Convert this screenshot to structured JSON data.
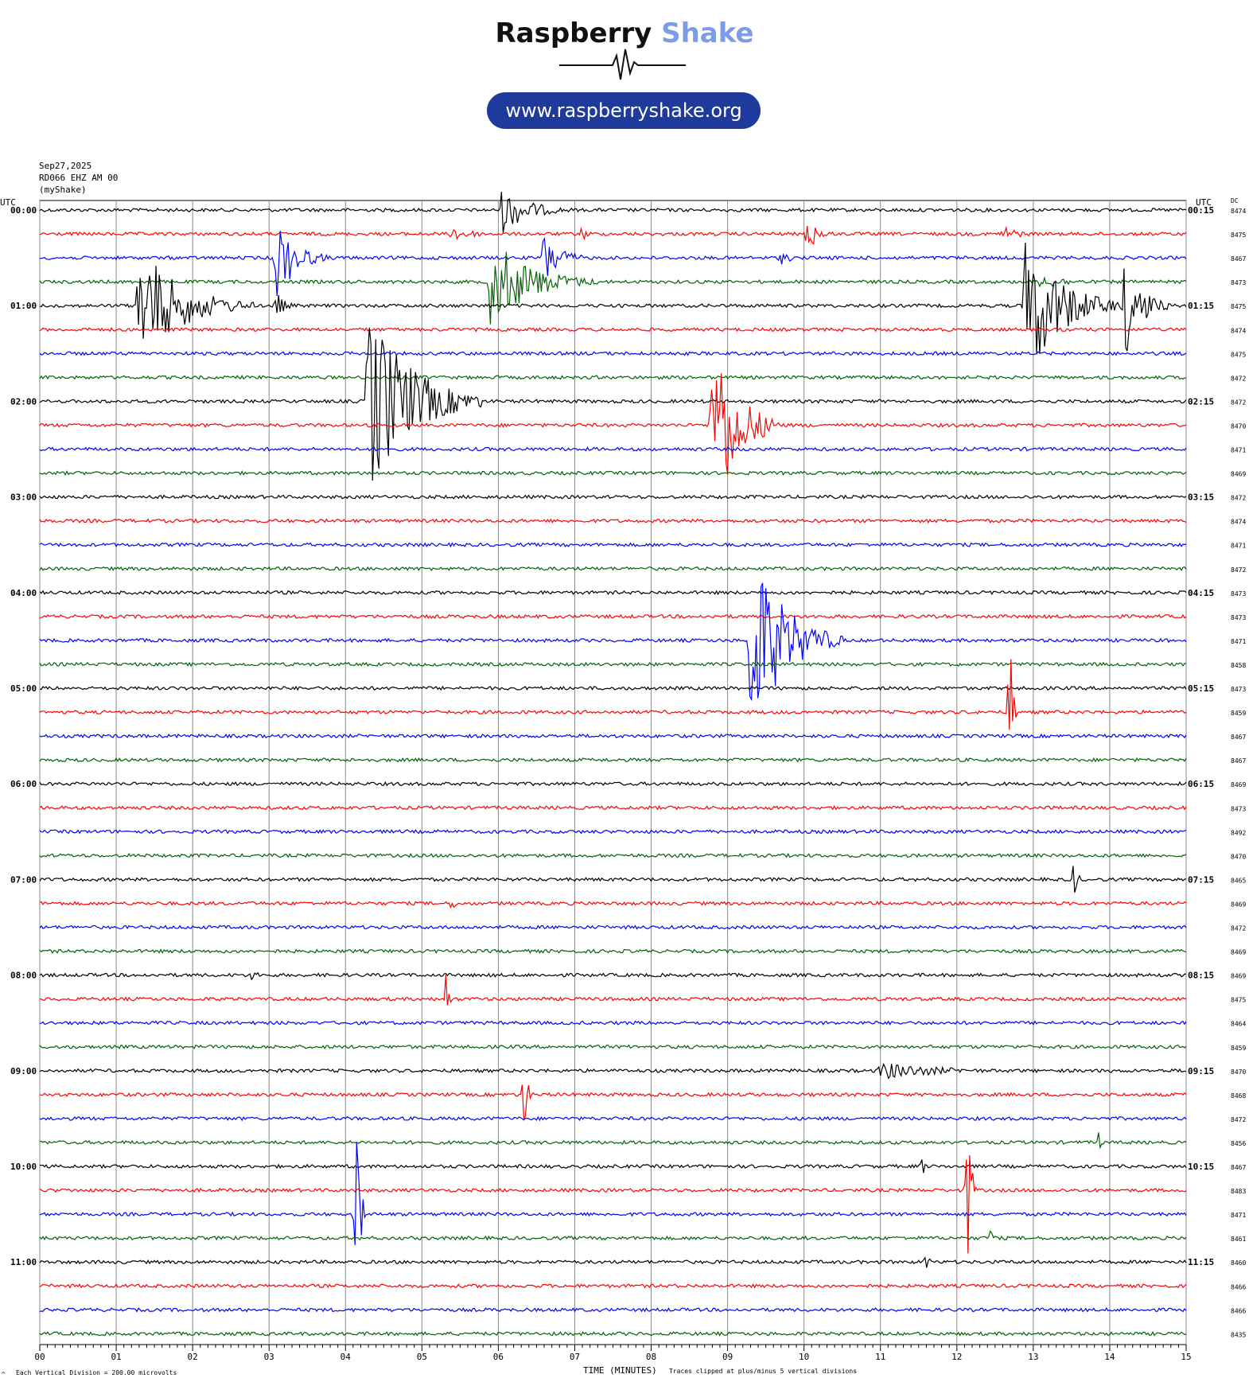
{
  "header": {
    "brand_part1": "Raspberry",
    "brand_part2": "Shake",
    "url": "www.raspberryshake.org",
    "logo": "seismogram-logo"
  },
  "meta": {
    "date": "Sep27,2025",
    "station": "RD066 EHZ AM 00",
    "network": "(myShake)",
    "left_tz": "UTC",
    "right_tz": "UTC",
    "dc_label": "DC",
    "footer_left": "Each Vertical Division =  200.00 microvolts",
    "footer_center": "TIME (MINUTES)",
    "footer_right": "Traces clipped at plus/minus 5 vertical divisions",
    "corner_mark": "^"
  },
  "chart_data": {
    "type": "line",
    "title": "",
    "xlabel": "TIME (MINUTES)",
    "ylabel": "",
    "x_ticks": [
      "00",
      "01",
      "02",
      "03",
      "04",
      "05",
      "06",
      "07",
      "08",
      "09",
      "10",
      "11",
      "12",
      "13",
      "14",
      "15"
    ],
    "xlim": [
      0,
      15
    ],
    "grid": true,
    "trace_colors": [
      "#000000",
      "#ff0000",
      "#0000ff",
      "#006400"
    ],
    "left_labels": [
      "00:00",
      "01:00",
      "02:00",
      "03:00",
      "04:00",
      "05:00",
      "06:00",
      "07:00",
      "08:00",
      "09:00",
      "10:00",
      "11:00"
    ],
    "right_labels": [
      "00:15",
      "01:15",
      "02:15",
      "03:15",
      "04:15",
      "05:15",
      "06:15",
      "07:15",
      "08:15",
      "09:15",
      "10:15",
      "11:15"
    ],
    "dc_offsets": [
      "8474",
      "8475",
      "8467",
      "8473",
      "8475",
      "8474",
      "8475",
      "8472",
      "8472",
      "8470",
      "8471",
      "8469",
      "8472",
      "8474",
      "8471",
      "8472",
      "8473",
      "8473",
      "8471",
      "8458",
      "8473",
      "8459",
      "8467",
      "8467",
      "8469",
      "8473",
      "8492",
      "8470",
      "8465",
      "8469",
      "8472",
      "8469",
      "8469",
      "8475",
      "8464",
      "8459",
      "8470",
      "8468",
      "8472",
      "8456",
      "8467",
      "8483",
      "8471",
      "8461",
      "8460",
      "8466",
      "8466",
      "8435"
    ],
    "events": [
      {
        "trace": 0,
        "minute": 6.05,
        "amp": 1.0,
        "dur": 1.0
      },
      {
        "trace": 1,
        "minute": 5.4,
        "amp": 0.35,
        "dur": 0.8
      },
      {
        "trace": 1,
        "minute": 7.1,
        "amp": 0.4,
        "dur": 0.2
      },
      {
        "trace": 1,
        "minute": 10.05,
        "amp": 0.8,
        "dur": 0.4
      },
      {
        "trace": 1,
        "minute": 12.6,
        "amp": 0.4,
        "dur": 0.6
      },
      {
        "trace": 2,
        "minute": 3.1,
        "amp": 1.8,
        "dur": 0.7
      },
      {
        "trace": 2,
        "minute": 6.6,
        "amp": 1.2,
        "dur": 0.6
      },
      {
        "trace": 2,
        "minute": 9.7,
        "amp": 0.3,
        "dur": 0.4
      },
      {
        "trace": 3,
        "minute": 5.9,
        "amp": 2.0,
        "dur": 1.4
      },
      {
        "trace": 3,
        "minute": 13.1,
        "amp": 0.3,
        "dur": 1.2
      },
      {
        "trace": 4,
        "minute": 1.3,
        "amp": 2.6,
        "dur": 1.5
      },
      {
        "trace": 4,
        "minute": 3.1,
        "amp": 0.6,
        "dur": 0.3
      },
      {
        "trace": 4,
        "minute": 12.9,
        "amp": 3.2,
        "dur": 1.3
      },
      {
        "trace": 4,
        "minute": 14.2,
        "amp": 2.2,
        "dur": 0.6
      },
      {
        "trace": 8,
        "minute": 4.3,
        "amp": 4.2,
        "dur": 1.5
      },
      {
        "trace": 9,
        "minute": 8.8,
        "amp": 4.2,
        "dur": 0.9
      },
      {
        "trace": 18,
        "minute": 9.3,
        "amp": 4.2,
        "dur": 1.2
      },
      {
        "trace": 21,
        "minute": 12.7,
        "amp": 4.0,
        "dur": 0.08
      },
      {
        "trace": 28,
        "minute": 13.55,
        "amp": 1.4,
        "dur": 0.08
      },
      {
        "trace": 29,
        "minute": 5.4,
        "amp": 0.4,
        "dur": 0.1
      },
      {
        "trace": 32,
        "minute": 2.8,
        "amp": 0.6,
        "dur": 0.1
      },
      {
        "trace": 33,
        "minute": 5.3,
        "amp": 2.4,
        "dur": 0.08
      },
      {
        "trace": 36,
        "minute": 11.0,
        "amp": 0.4,
        "dur": 2.2
      },
      {
        "trace": 37,
        "minute": 6.35,
        "amp": 2.4,
        "dur": 0.08
      },
      {
        "trace": 39,
        "minute": 13.85,
        "amp": 0.6,
        "dur": 0.08
      },
      {
        "trace": 40,
        "minute": 11.55,
        "amp": 0.5,
        "dur": 0.08
      },
      {
        "trace": 41,
        "minute": 12.15,
        "amp": 3.8,
        "dur": 0.1
      },
      {
        "trace": 42,
        "minute": 4.15,
        "amp": 4.2,
        "dur": 0.12
      },
      {
        "trace": 43,
        "minute": 12.45,
        "amp": 0.6,
        "dur": 0.08
      },
      {
        "trace": 44,
        "minute": 11.6,
        "amp": 0.5,
        "dur": 0.1
      }
    ]
  }
}
